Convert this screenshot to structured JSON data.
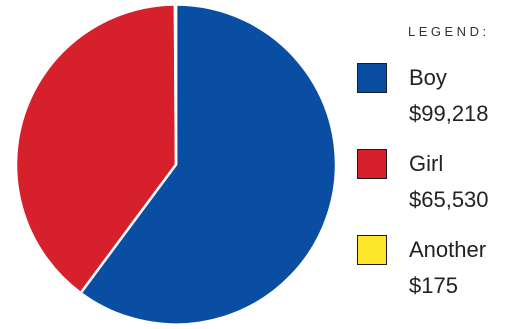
{
  "chart_data": {
    "type": "pie",
    "title": "",
    "legend_title": "LEGEND:",
    "legend_position": "right",
    "slices": [
      {
        "label": "Boy",
        "value_text": "$99,218",
        "value": 99218,
        "color": "#0a4ea3"
      },
      {
        "label": "Girl",
        "value_text": "$65,530",
        "value": 65530,
        "color": "#d6202b"
      },
      {
        "label": "Another",
        "value_text": "$175",
        "value": 175,
        "color": "#fde629"
      }
    ]
  }
}
